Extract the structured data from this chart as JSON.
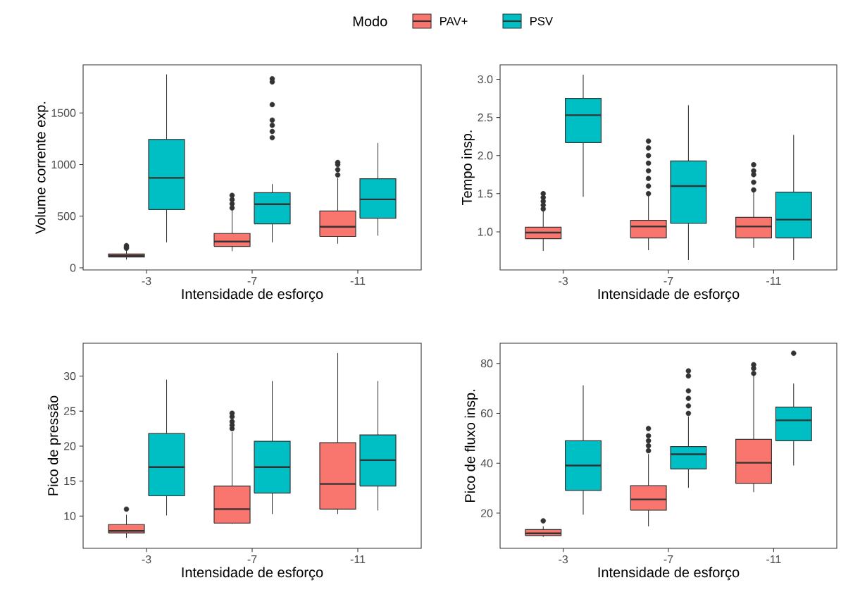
{
  "chart_data": [
    {
      "type": "box",
      "legend": "top",
      "legend_title": "Modo",
      "xlabel": "Intensidade de esforço",
      "ylabel": "Volume corrente exp.",
      "categories": [
        "-3",
        "-7",
        "-11"
      ],
      "ylim": [
        -20,
        1965
      ],
      "yticks": [
        0,
        500,
        1000,
        1500
      ],
      "series": [
        {
          "name": "PAV+",
          "color": "#f8766d",
          "boxes": [
            {
              "low": 80,
              "q1": 105,
              "median": 118,
              "q3": 135,
              "high": 175,
              "outliers": [
                190,
                200,
                215
              ]
            },
            {
              "low": 161,
              "q1": 208,
              "median": 255,
              "q3": 333,
              "high": 572,
              "outliers": [
                580,
                620,
                660,
                702
              ]
            },
            {
              "low": 234,
              "q1": 304,
              "median": 398,
              "q3": 551,
              "high": 871,
              "outliers": [
                900,
                950,
                1000,
                1020
              ]
            }
          ]
        },
        {
          "name": "PSV",
          "color": "#00bfc4",
          "boxes": [
            {
              "low": 247,
              "q1": 564,
              "median": 871,
              "q3": 1243,
              "high": 1872
            },
            {
              "low": 247,
              "q1": 426,
              "median": 616,
              "q3": 728,
              "high": 811,
              "outliers": [
                1260,
                1320,
                1380,
                1430,
                1580,
                1800,
                1830
              ]
            },
            {
              "low": 312,
              "q1": 481,
              "median": 663,
              "q3": 863,
              "high": 1209
            }
          ]
        }
      ]
    },
    {
      "type": "box",
      "xlabel": "Intensidade de esforço",
      "ylabel": "Tempo insp.",
      "categories": [
        "-3",
        "-7",
        "-11"
      ],
      "ylim": [
        0.5,
        3.19
      ],
      "yticks": [
        {
          "value": 1,
          "label": "1.0"
        },
        {
          "value": 1.5,
          "label": "1.5"
        },
        {
          "value": 2,
          "label": "2.0"
        },
        {
          "value": 2.5,
          "label": "2.5"
        },
        {
          "value": 3,
          "label": "3.0"
        }
      ],
      "series": [
        {
          "color": "#f8766d",
          "boxes": [
            {
              "low": 0.75,
              "q1": 0.91,
              "median": 0.99,
              "q3": 1.06,
              "high": 1.27,
              "outliers": [
                1.3,
                1.35,
                1.4,
                1.45,
                1.5
              ]
            },
            {
              "low": 0.76,
              "q1": 0.92,
              "median": 1.07,
              "q3": 1.15,
              "high": 1.47,
              "outliers": [
                1.5,
                1.6,
                1.7,
                1.8,
                1.9,
                2.0,
                2.1,
                2.19
              ]
            },
            {
              "low": 0.79,
              "q1": 0.92,
              "median": 1.07,
              "q3": 1.19,
              "high": 1.52,
              "outliers": [
                1.55,
                1.65,
                1.75,
                1.8,
                1.88
              ]
            }
          ]
        },
        {
          "color": "#00bfc4",
          "boxes": [
            {
              "low": 1.46,
              "q1": 2.17,
              "median": 2.53,
              "q3": 2.75,
              "high": 3.06
            },
            {
              "low": 0.63,
              "q1": 1.11,
              "median": 1.6,
              "q3": 1.93,
              "high": 2.66
            },
            {
              "low": 0.63,
              "q1": 0.92,
              "median": 1.16,
              "q3": 1.52,
              "high": 2.27
            }
          ]
        }
      ]
    },
    {
      "type": "box",
      "xlabel": "Intensidade de esforço",
      "ylabel": "Pico de pressão",
      "categories": [
        "-3",
        "-7",
        "-11"
      ],
      "ylim": [
        5.4,
        34.7
      ],
      "yticks": [
        10,
        15,
        20,
        25,
        30
      ],
      "series": [
        {
          "color": "#f8766d",
          "boxes": [
            {
              "low": 6.9,
              "q1": 7.6,
              "median": 7.9,
              "q3": 8.8,
              "high": 10.2,
              "outliers": [
                11.0
              ]
            },
            {
              "low": 8.9,
              "q1": 9.0,
              "median": 11.0,
              "q3": 14.3,
              "high": 22.0,
              "outliers": [
                22.5,
                23,
                23.5,
                24.2,
                24.7
              ]
            },
            {
              "low": 10.3,
              "q1": 11.0,
              "median": 14.6,
              "q3": 20.5,
              "high": 33.3
            }
          ]
        },
        {
          "color": "#00bfc4",
          "boxes": [
            {
              "low": 10.1,
              "q1": 12.9,
              "median": 17.0,
              "q3": 21.8,
              "high": 29.5
            },
            {
              "low": 10.3,
              "q1": 13.3,
              "median": 17.0,
              "q3": 20.7,
              "high": 29.3
            },
            {
              "low": 10.8,
              "q1": 14.3,
              "median": 18.0,
              "q3": 21.6,
              "high": 29.3
            }
          ]
        }
      ]
    },
    {
      "type": "box",
      "xlabel": "Intensidade de esforço",
      "ylabel": "Pico de fluxo insp.",
      "categories": [
        "-3",
        "-7",
        "-11"
      ],
      "ylim": [
        5.9,
        88.1
      ],
      "yticks": [
        20,
        40,
        60,
        80
      ],
      "series": [
        {
          "color": "#f8766d",
          "boxes": [
            {
              "low": 10.5,
              "q1": 11.0,
              "median": 11.9,
              "q3": 13.4,
              "high": 14.7,
              "outliers": [
                16.9
              ]
            },
            {
              "low": 14.7,
              "q1": 21.2,
              "median": 25.5,
              "q3": 31.0,
              "high": 43.7,
              "outliers": [
                45,
                47,
                49,
                51,
                53.9
              ]
            },
            {
              "low": 28.4,
              "q1": 31.9,
              "median": 40.2,
              "q3": 49.6,
              "high": 75.3,
              "outliers": [
                76,
                78,
                79.5
              ]
            }
          ]
        },
        {
          "color": "#00bfc4",
          "boxes": [
            {
              "low": 19.4,
              "q1": 29.1,
              "median": 39.1,
              "q3": 49.0,
              "high": 71.2
            },
            {
              "low": 30.1,
              "q1": 37.7,
              "median": 43.6,
              "q3": 46.7,
              "high": 58.7,
              "outliers": [
                60,
                63,
                66,
                69,
                75,
                77
              ]
            },
            {
              "low": 39.1,
              "q1": 49.0,
              "median": 57.2,
              "q3": 62.5,
              "high": 71.9,
              "outliers": [
                84.1
              ]
            }
          ]
        }
      ]
    }
  ]
}
